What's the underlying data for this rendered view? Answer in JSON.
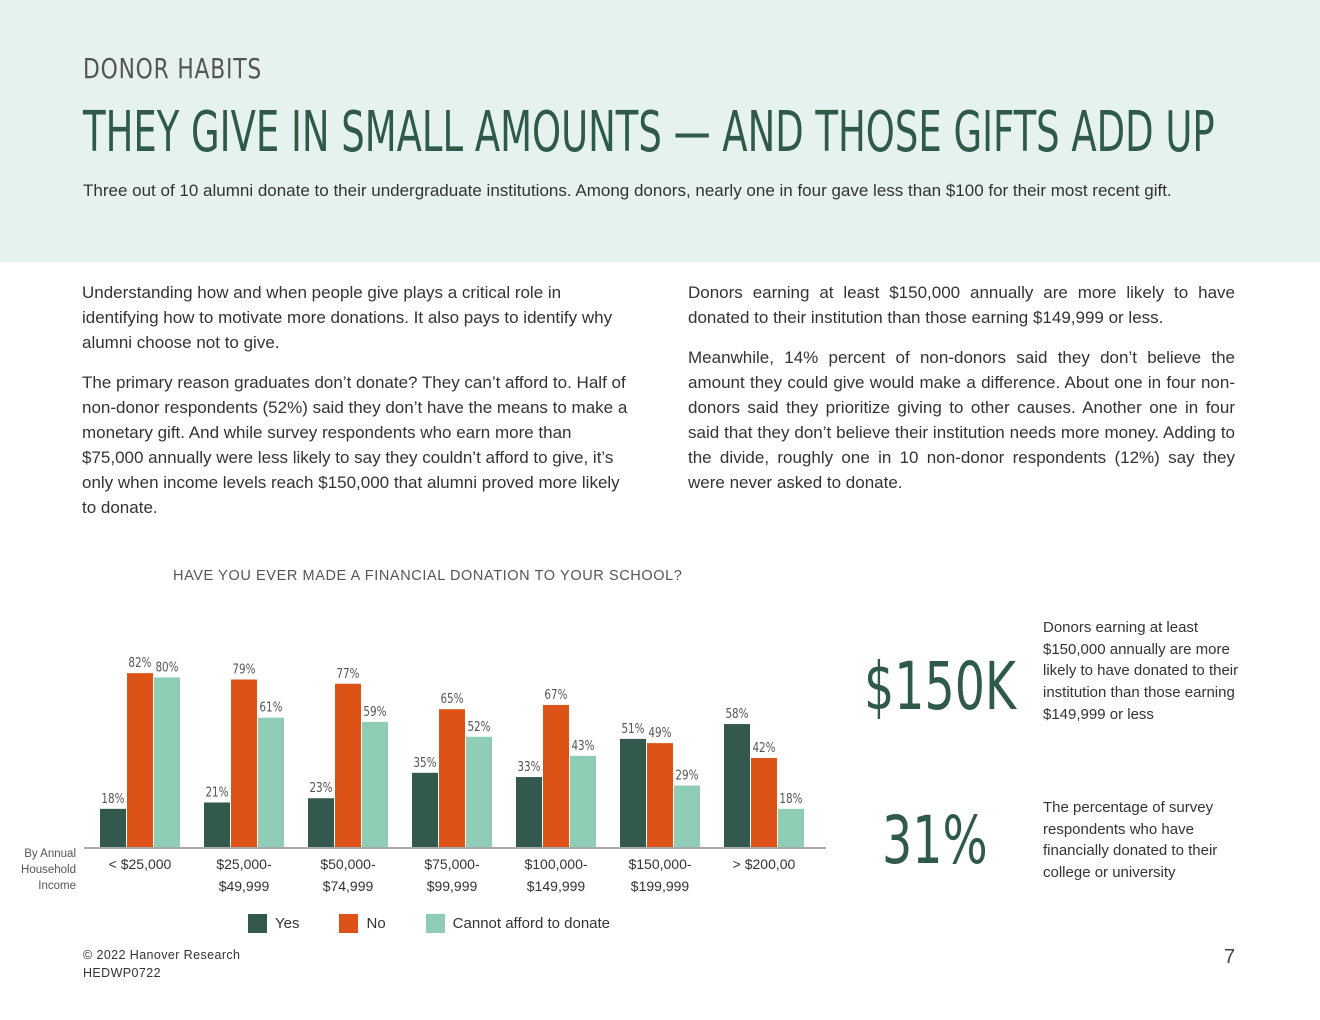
{
  "header": {
    "kicker": "DONOR HABITS",
    "headline": "THEY GIVE IN SMALL AMOUNTS — AND THOSE GIFTS ADD UP",
    "lede": "Three out of 10 alumni donate to their undergraduate institutions. Among donors, nearly one in four gave less than $100 for their most recent gift."
  },
  "body": {
    "left": [
      "Understanding how and when people give plays a critical role in identifying how to motivate more donations. It also pays to identify why alumni choose not to give.",
      "The primary reason graduates don’t donate? They can’t afford to. Half of non-donor respondents (52%) said they don’t have the means to make a monetary gift. And while survey respondents who earn more than $75,000 annually were less likely to say they couldn’t afford to give, it’s only when income levels reach $150,000 that alumni proved more likely to donate."
    ],
    "right": [
      "Donors earning at least $150,000 annually are more likely to have donated to their institution than those earning $149,999 or less.",
      "Meanwhile, 14% percent of non-donors said they don’t believe the amount they could give would make a difference. About one in four non-donors said they prioritize giving to other causes. Another one in four said that they don’t believe their institution needs more money. Adding to the divide, roughly one in 10 non-donor respondents (12%) say they were never asked to donate."
    ]
  },
  "chart_data": {
    "type": "bar",
    "title": "HAVE YOU EVER MADE A FINANCIAL DONATION TO YOUR SCHOOL?",
    "xlabel": "By Annual Household Income",
    "ylabel": "",
    "categories": [
      [
        "< $25,000"
      ],
      [
        "$25,000-",
        "$49,999"
      ],
      [
        "$50,000-",
        "$74,999"
      ],
      [
        "$75,000-",
        "$99,999"
      ],
      [
        "$100,000-",
        "$149,999"
      ],
      [
        "$150,000-",
        "$199,999"
      ],
      [
        "> $200,00"
      ]
    ],
    "ylim": [
      0,
      100
    ],
    "grid": false,
    "legend": "bottom",
    "value_suffix": "%",
    "series": [
      {
        "name": "Yes",
        "color": "#33594e",
        "values": [
          18,
          21,
          23,
          35,
          33,
          51,
          58
        ]
      },
      {
        "name": "No",
        "color": "#dc5217",
        "values": [
          82,
          79,
          77,
          65,
          67,
          49,
          42
        ]
      },
      {
        "name": "Cannot afford to donate",
        "color": "#90cdb6",
        "values": [
          80,
          61,
          59,
          52,
          43,
          29,
          18
        ]
      }
    ]
  },
  "stats": [
    {
      "value": "$150K",
      "description": "Donors earning at least $150,000 annually are more likely to have donated to their institution than those earning $149,999 or less"
    },
    {
      "value": "31%",
      "description": "The percentage of survey respondents who have financially donated to their college or university"
    }
  ],
  "footer": {
    "copyright": "© 2022 Hanover Research",
    "code": "HEDWP0722",
    "page_number": "7"
  }
}
